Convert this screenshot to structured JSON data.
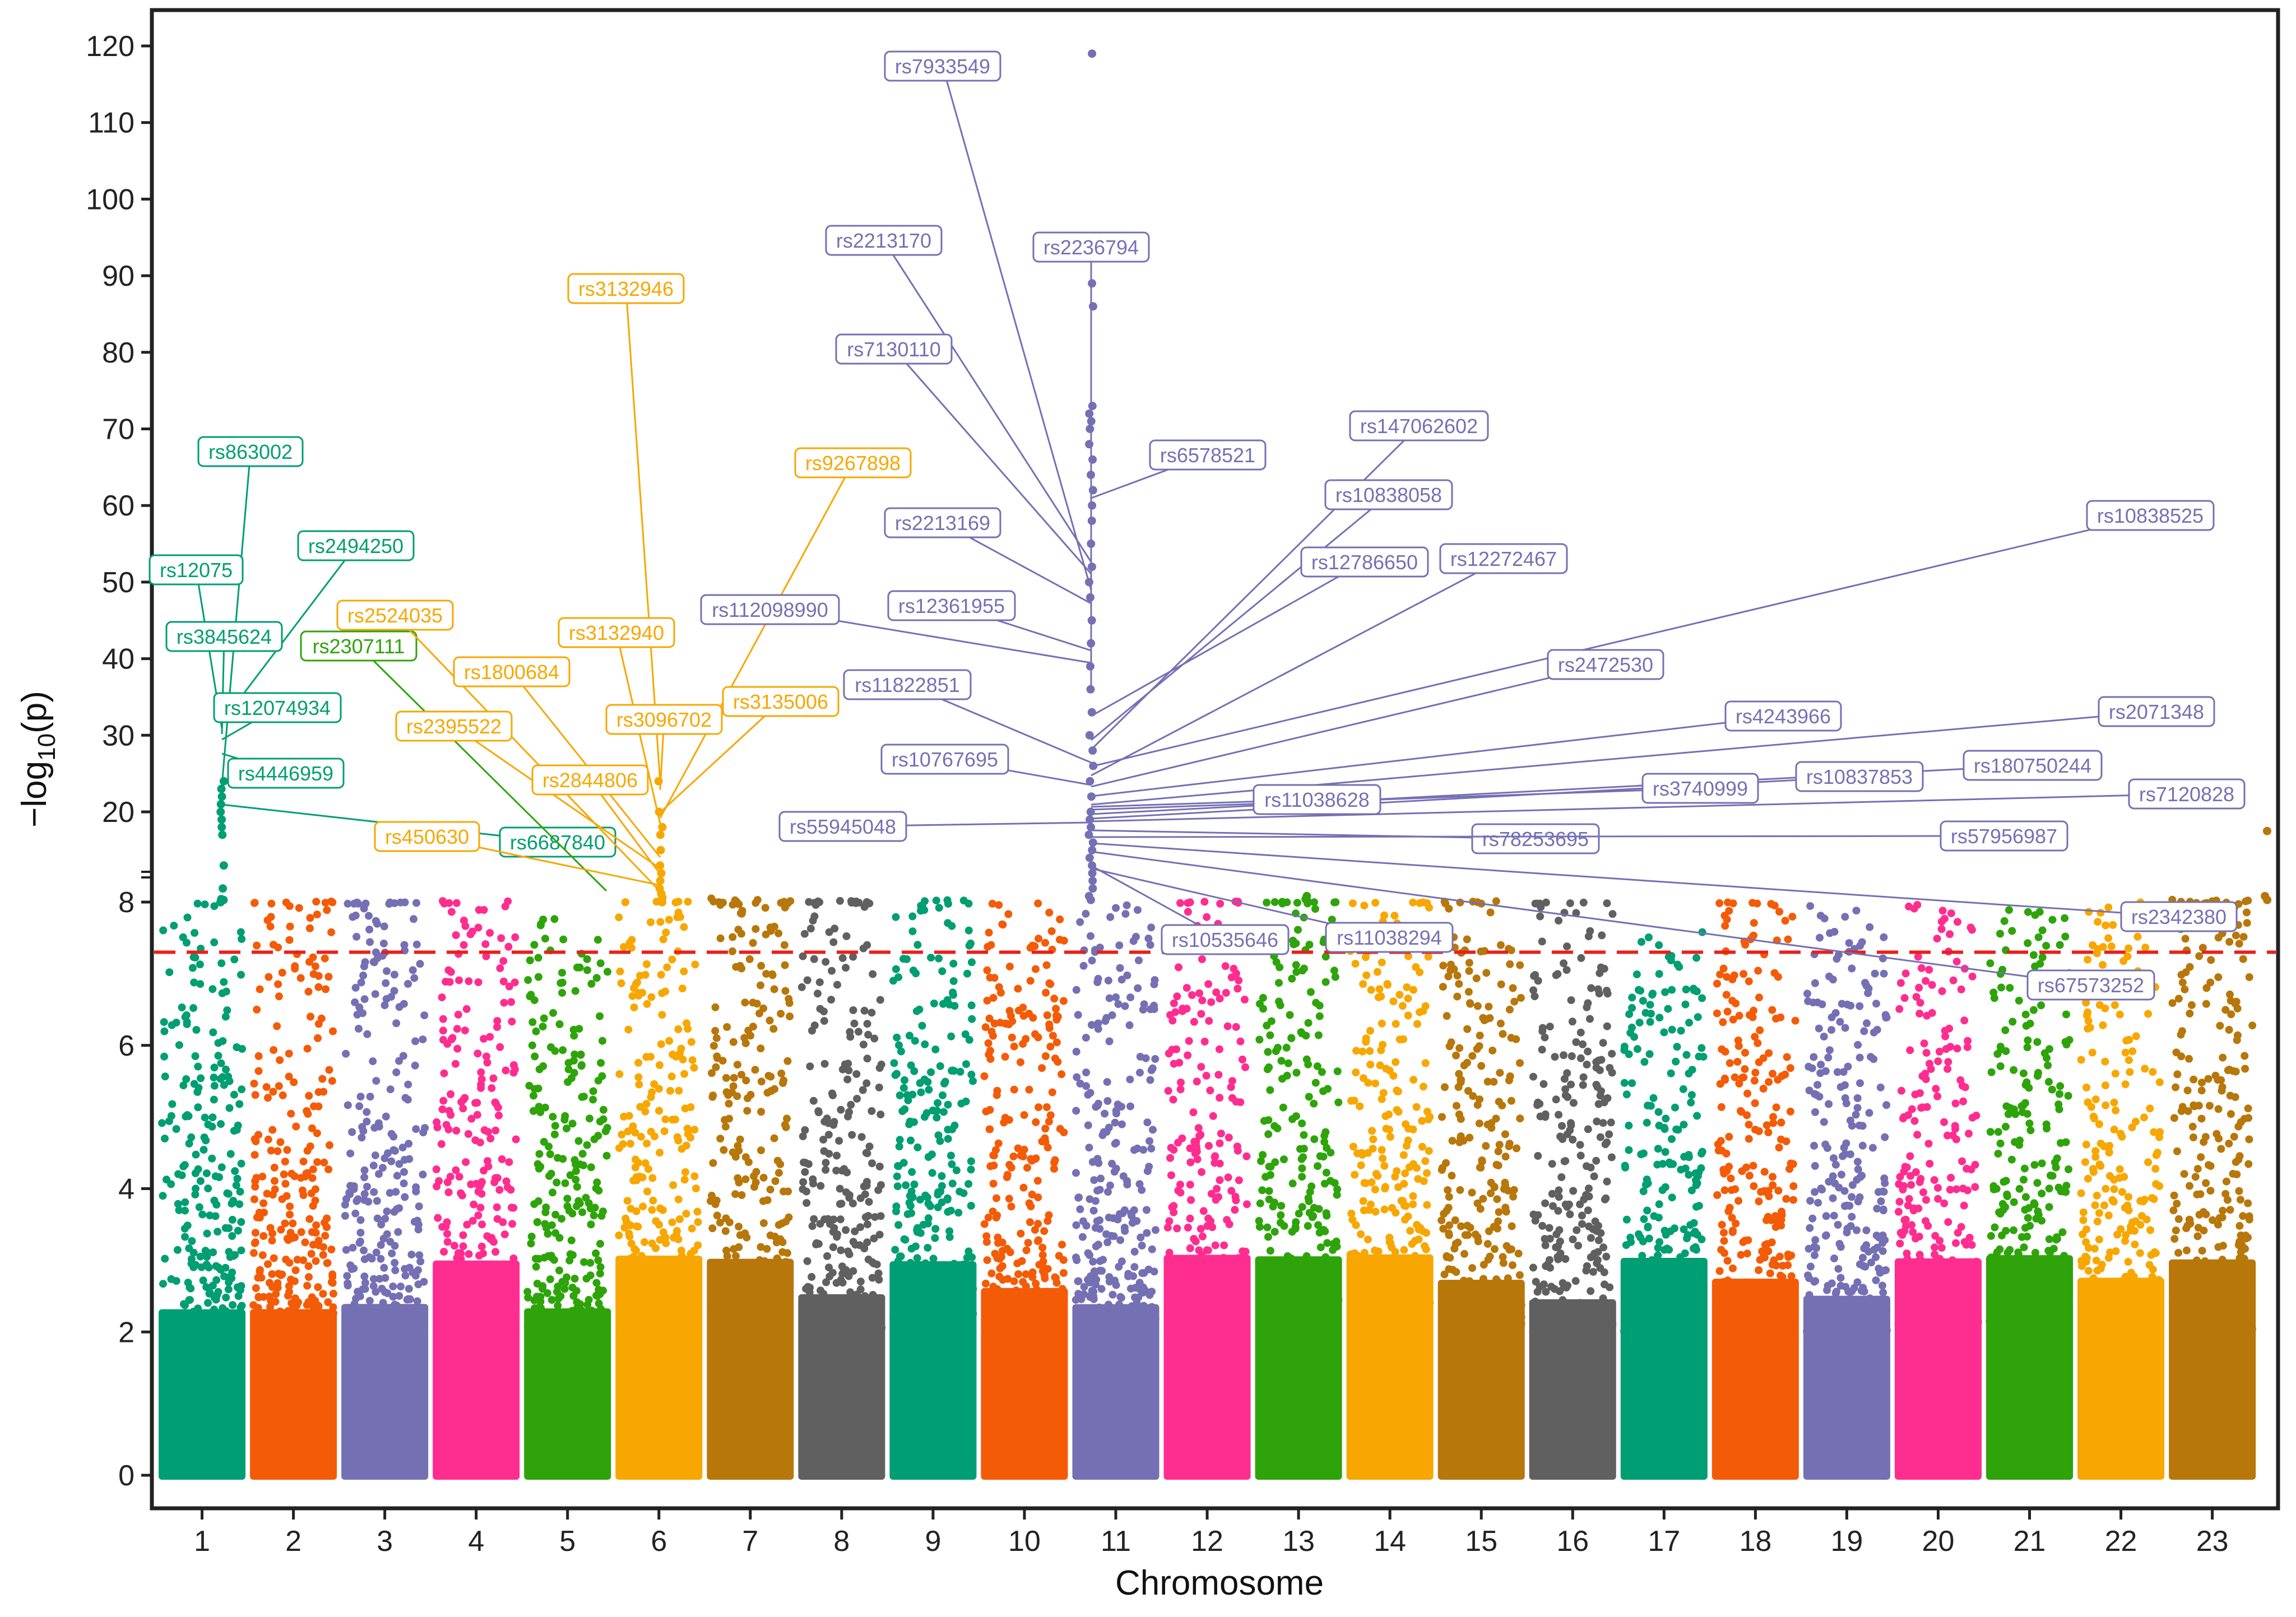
{
  "chart_data": {
    "type": "scatter",
    "subtype": "manhattan",
    "title": "",
    "xlabel": "Chromosome",
    "ylabel": "-log10(p)",
    "ylabel_parts": {
      "prefix": "−log",
      "sub": "10",
      "suffix": "(p)"
    },
    "y_axis": {
      "lower_range": [
        0,
        8
      ],
      "lower_ticks": [
        0,
        2,
        4,
        6,
        8
      ],
      "axis_break": true,
      "upper_range": [
        8,
        120
      ],
      "upper_ticks": [
        20,
        30,
        40,
        50,
        60,
        70,
        80,
        90,
        100,
        110,
        120
      ]
    },
    "significance_threshold": 7.3,
    "threshold_style": "red-dashed",
    "grid": false,
    "legend": "none",
    "chromosomes": [
      "1",
      "2",
      "3",
      "4",
      "5",
      "6",
      "7",
      "8",
      "9",
      "10",
      "11",
      "12",
      "13",
      "14",
      "15",
      "16",
      "17",
      "18",
      "19",
      "20",
      "21",
      "22",
      "23"
    ],
    "chromosome_colors": [
      "#009E73",
      "#F45B07",
      "#7570B3",
      "#FF2D8F",
      "#2EA40A",
      "#F7A700",
      "#B8770A",
      "#606060",
      "#009E73",
      "#F45B07",
      "#7570B3",
      "#FF2D8F",
      "#2EA40A",
      "#F7A700",
      "#B8770A",
      "#606060",
      "#009E73",
      "#F45B07",
      "#7570B3",
      "#FF2D8F",
      "#2EA40A",
      "#F7A700",
      "#B8770A"
    ],
    "chromosome_max_logp": [
      8.1,
      8.4,
      8.2,
      8.4,
      7.9,
      8.3,
      8.7,
      8.4,
      8.5,
      8.1,
      8.0,
      8.3,
      8.3,
      8.2,
      8.4,
      8.2,
      7.6,
      8.2,
      8.0,
      8.0,
      7.9,
      8.0,
      8.6
    ],
    "peaks": [
      {
        "chr": "1",
        "values": [
          8.2,
          8.5,
          8.6,
          10,
          13,
          17,
          18,
          19,
          20,
          21,
          22,
          23,
          24
        ]
      },
      {
        "chr": "6",
        "values": [
          8.2,
          8.5,
          8.8,
          9.3,
          10,
          11,
          12,
          13,
          15,
          17,
          18,
          20,
          24
        ]
      },
      {
        "chr": "11",
        "values": [
          8.5,
          9,
          10,
          11,
          12,
          13,
          14,
          15,
          16,
          17,
          18,
          19,
          20,
          22,
          24,
          26,
          28,
          30,
          33,
          36,
          39,
          42,
          45,
          48,
          50,
          52,
          55,
          58,
          60,
          62,
          64,
          66,
          68,
          70,
          71,
          72,
          73,
          86,
          89,
          119
        ]
      },
      {
        "chr": "13",
        "values": [
          8.3,
          8.6,
          9.0
        ]
      },
      {
        "chr": "23",
        "values": [
          8.5,
          9.0,
          17.5
        ]
      }
    ],
    "annotations": [
      {
        "label": "rs863002",
        "chr": "1"
      },
      {
        "label": "rs12075",
        "chr": "1"
      },
      {
        "label": "rs2494250",
        "chr": "1"
      },
      {
        "label": "rs3845624",
        "chr": "1"
      },
      {
        "label": "rs12074934",
        "chr": "1"
      },
      {
        "label": "rs4446959",
        "chr": "1"
      },
      {
        "label": "rs6687840",
        "chr": "1"
      },
      {
        "label": "rs2307111",
        "chr": "5"
      },
      {
        "label": "rs2524035",
        "chr": "6"
      },
      {
        "label": "rs3132946",
        "chr": "6"
      },
      {
        "label": "rs9267898",
        "chr": "6"
      },
      {
        "label": "rs3132940",
        "chr": "6"
      },
      {
        "label": "rs1800684",
        "chr": "6"
      },
      {
        "label": "rs3096702",
        "chr": "6"
      },
      {
        "label": "rs3135006",
        "chr": "6"
      },
      {
        "label": "rs2395522",
        "chr": "6"
      },
      {
        "label": "rs2844806",
        "chr": "6"
      },
      {
        "label": "rs450630",
        "chr": "6"
      },
      {
        "label": "rs7933549",
        "chr": "11"
      },
      {
        "label": "rs2213170",
        "chr": "11"
      },
      {
        "label": "rs2236794",
        "chr": "11"
      },
      {
        "label": "rs7130110",
        "chr": "11"
      },
      {
        "label": "rs6578521",
        "chr": "11"
      },
      {
        "label": "rs147062602",
        "chr": "11"
      },
      {
        "label": "rs10838058",
        "chr": "11"
      },
      {
        "label": "rs2213169",
        "chr": "11"
      },
      {
        "label": "rs10838525",
        "chr": "11"
      },
      {
        "label": "rs12786650",
        "chr": "11"
      },
      {
        "label": "rs12272467",
        "chr": "11"
      },
      {
        "label": "rs112098990",
        "chr": "11"
      },
      {
        "label": "rs12361955",
        "chr": "11"
      },
      {
        "label": "rs2472530",
        "chr": "11"
      },
      {
        "label": "rs11822851",
        "chr": "11"
      },
      {
        "label": "rs4243966",
        "chr": "11"
      },
      {
        "label": "rs2071348",
        "chr": "11"
      },
      {
        "label": "rs10767695",
        "chr": "11"
      },
      {
        "label": "rs180750244",
        "chr": "11"
      },
      {
        "label": "rs10837853",
        "chr": "11"
      },
      {
        "label": "rs3740999",
        "chr": "11"
      },
      {
        "label": "rs11038628",
        "chr": "11"
      },
      {
        "label": "rs7120828",
        "chr": "11"
      },
      {
        "label": "rs55945048",
        "chr": "11"
      },
      {
        "label": "rs78253695",
        "chr": "11"
      },
      {
        "label": "rs57956987",
        "chr": "11"
      },
      {
        "label": "rs2342380",
        "chr": "11"
      },
      {
        "label": "rs10535646",
        "chr": "11"
      },
      {
        "label": "rs11038294",
        "chr": "11"
      },
      {
        "label": "rs67573252",
        "chr": "11"
      }
    ]
  }
}
